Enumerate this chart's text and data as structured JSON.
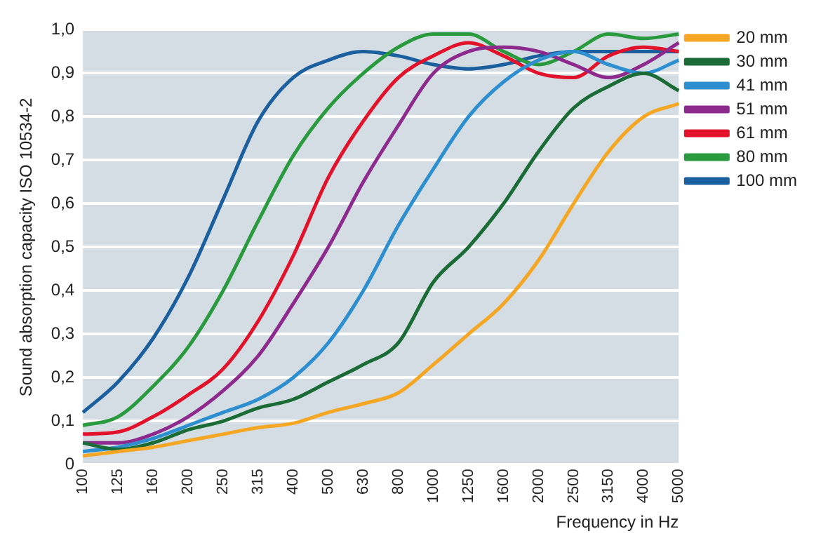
{
  "chart_data": {
    "type": "line",
    "xlabel": "Frequency in Hz",
    "ylabel": "Sound absorption capacity ISO 10534-2",
    "categories": [
      "100",
      "125",
      "160",
      "200",
      "250",
      "315",
      "400",
      "500",
      "630",
      "800",
      "1000",
      "1250",
      "1600",
      "2000",
      "2500",
      "3150",
      "4000",
      "5000"
    ],
    "ylim": [
      0,
      1
    ],
    "yticks": [
      {
        "value": 0,
        "label": "0"
      },
      {
        "value": 0.1,
        "label": "0,1"
      },
      {
        "value": 0.2,
        "label": "0,2"
      },
      {
        "value": 0.3,
        "label": "0,3"
      },
      {
        "value": 0.4,
        "label": "0,4"
      },
      {
        "value": 0.5,
        "label": "0,5"
      },
      {
        "value": 0.6,
        "label": "0,6"
      },
      {
        "value": 0.7,
        "label": "0,7"
      },
      {
        "value": 0.8,
        "label": "0,8"
      },
      {
        "value": 0.9,
        "label": "0,9"
      },
      {
        "value": 1,
        "label": "1,0"
      }
    ],
    "grid": "y",
    "legend": "right",
    "marker": "none",
    "line_style": "solid",
    "series": [
      {
        "name": "20 mm",
        "color": "#f5a623",
        "values": [
          0.02,
          0.03,
          0.04,
          0.055,
          0.07,
          0.085,
          0.095,
          0.12,
          0.14,
          0.165,
          0.23,
          0.3,
          0.37,
          0.47,
          0.6,
          0.72,
          0.8,
          0.83
        ]
      },
      {
        "name": "30 mm",
        "color": "#1a6b35",
        "values": [
          0.05,
          0.035,
          0.05,
          0.08,
          0.1,
          0.13,
          0.15,
          0.19,
          0.23,
          0.28,
          0.42,
          0.5,
          0.6,
          0.72,
          0.82,
          0.87,
          0.9,
          0.86
        ]
      },
      {
        "name": "41 mm",
        "color": "#2d8fcf",
        "values": [
          0.03,
          0.04,
          0.06,
          0.09,
          0.12,
          0.15,
          0.2,
          0.28,
          0.4,
          0.55,
          0.68,
          0.8,
          0.88,
          0.93,
          0.95,
          0.92,
          0.9,
          0.93
        ]
      },
      {
        "name": "51 mm",
        "color": "#8e2a8e",
        "values": [
          0.05,
          0.05,
          0.07,
          0.11,
          0.17,
          0.25,
          0.37,
          0.5,
          0.65,
          0.78,
          0.9,
          0.95,
          0.96,
          0.95,
          0.92,
          0.89,
          0.92,
          0.97
        ]
      },
      {
        "name": "61 mm",
        "color": "#e2122a",
        "values": [
          0.07,
          0.075,
          0.11,
          0.16,
          0.22,
          0.33,
          0.48,
          0.66,
          0.79,
          0.89,
          0.94,
          0.97,
          0.94,
          0.9,
          0.89,
          0.94,
          0.96,
          0.95
        ]
      },
      {
        "name": "80 mm",
        "color": "#2a9a3e",
        "values": [
          0.09,
          0.11,
          0.18,
          0.27,
          0.4,
          0.56,
          0.71,
          0.82,
          0.9,
          0.96,
          0.99,
          0.99,
          0.95,
          0.92,
          0.95,
          0.99,
          0.98,
          0.99
        ]
      },
      {
        "name": "100 mm",
        "color": "#1b5f9e",
        "values": [
          0.12,
          0.19,
          0.29,
          0.43,
          0.61,
          0.79,
          0.89,
          0.93,
          0.95,
          0.94,
          0.92,
          0.91,
          0.92,
          0.94,
          0.95,
          0.95,
          0.95,
          0.95
        ]
      }
    ]
  }
}
